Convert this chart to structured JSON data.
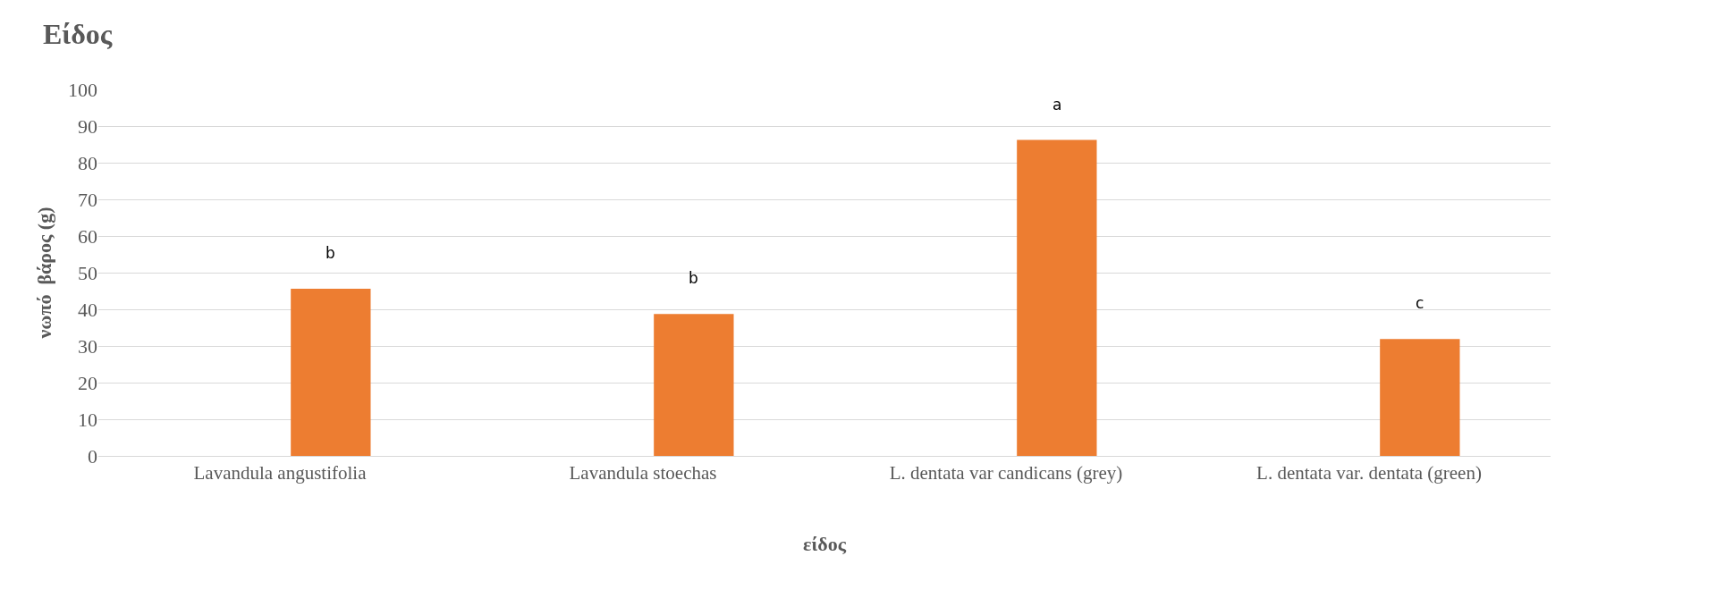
{
  "chart_data": {
    "type": "bar",
    "title": "Είδος",
    "xlabel": "είδος",
    "ylabel": "νωπό  βάρος (g)",
    "categories": [
      "Lavandula angustifolia",
      "Lavandula stoechas",
      "L. dentata var candicans (grey)",
      "L. dentata var. dentata (green)"
    ],
    "values": [
      45.6,
      38.7,
      86.2,
      31.9
    ],
    "color": "#ed7d31",
    "ylim": [
      0,
      100
    ],
    "yticks": [
      0,
      10,
      20,
      30,
      40,
      50,
      60,
      70,
      80,
      90,
      100
    ],
    "grid": "y",
    "annotations": [
      "b",
      "b",
      "a",
      "c"
    ]
  }
}
